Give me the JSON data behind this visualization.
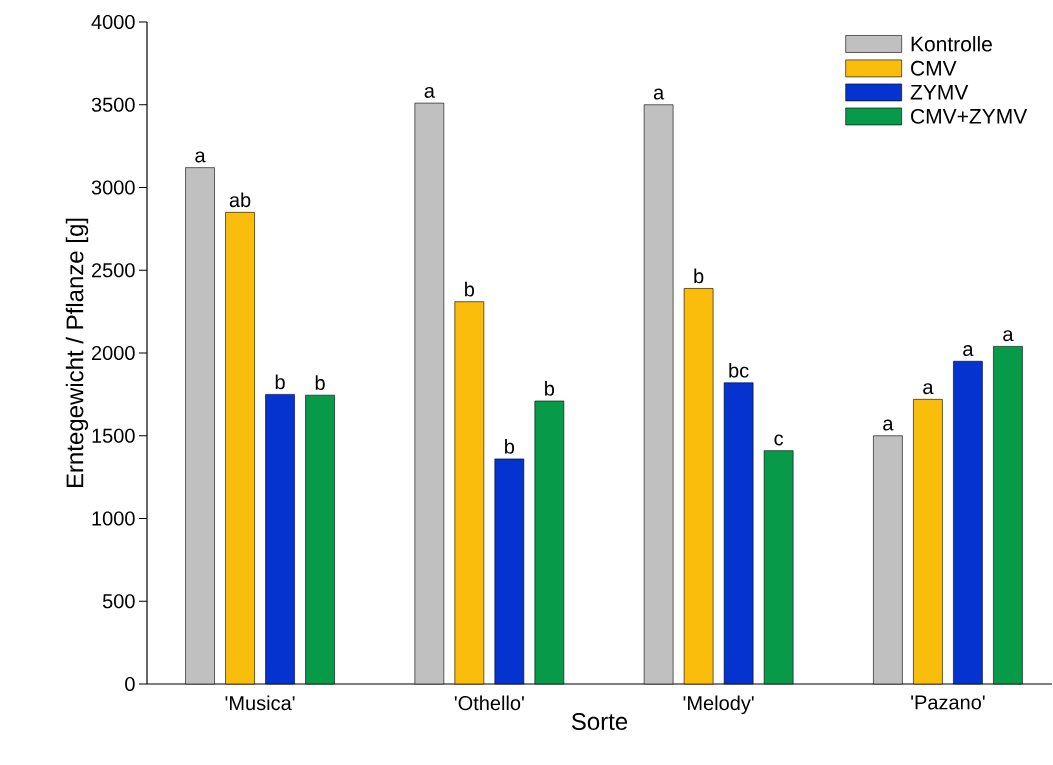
{
  "chart_data": {
    "type": "bar",
    "xlabel": "Sorte",
    "ylabel": "Erntegewicht / Pflanze [g]",
    "categories": [
      "'Musica'",
      "'Othello'",
      "'Melody'",
      "'Pazano'"
    ],
    "series": [
      {
        "name": "Kontrolle",
        "color": "#c0c0c0",
        "values": [
          3120,
          3510,
          3500,
          1500
        ],
        "value_labels": [
          "a",
          "a",
          "a",
          "a"
        ]
      },
      {
        "name": "CMV",
        "color": "#fbbd0c",
        "values": [
          2850,
          2310,
          2390,
          1720
        ],
        "value_labels": [
          "ab",
          "b",
          "b",
          "a"
        ]
      },
      {
        "name": "ZYMV",
        "color": "#0433d0",
        "values": [
          1750,
          1360,
          1820,
          1950
        ],
        "value_labels": [
          "b",
          "b",
          "bc",
          "a"
        ]
      },
      {
        "name": "CMV+ZYMV",
        "color": "#079a48",
        "values": [
          1745,
          1710,
          1410,
          2040
        ],
        "value_labels": [
          "b",
          "b",
          "c",
          "a"
        ]
      }
    ],
    "ylim": [
      0,
      4000
    ],
    "yticks": [
      0,
      500,
      1000,
      1500,
      2000,
      2500,
      3000,
      3500,
      4000
    ],
    "grid": false,
    "legend": "top right"
  }
}
